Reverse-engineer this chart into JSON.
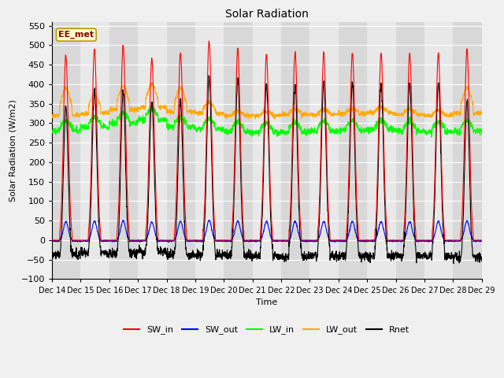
{
  "title": "Solar Radiation",
  "ylabel": "Solar Radiation (W/m2)",
  "xlabel": "Time",
  "ylim": [
    -100,
    560
  ],
  "yticks": [
    -100,
    -50,
    0,
    50,
    100,
    150,
    200,
    250,
    300,
    350,
    400,
    450,
    500,
    550
  ],
  "n_days": 15,
  "start_day": 14,
  "annotation_text": "EE_met",
  "annotation_bg": "#ffffcc",
  "annotation_border": "#bb9900",
  "colors": {
    "SW_in": "#ff0000",
    "SW_out": "#0000ff",
    "LW_in": "#00ff00",
    "LW_out": "#ffaa00",
    "Rnet": "#000000"
  },
  "legend_labels": [
    "SW_in",
    "SW_out",
    "LW_in",
    "LW_out",
    "Rnet"
  ],
  "sw_peaks": [
    475,
    490,
    500,
    465,
    480,
    510,
    490,
    475,
    480,
    480,
    480,
    480,
    480,
    480,
    490
  ],
  "lw_in_base": [
    280,
    290,
    300,
    310,
    290,
    285,
    278,
    276,
    278,
    280,
    282,
    284,
    280,
    278,
    280
  ],
  "lw_out_base_day": [
    390,
    375,
    395,
    400,
    390,
    355,
    330,
    330,
    335,
    335,
    338,
    340,
    335,
    333,
    390
  ],
  "lw_out_base_night": [
    320,
    325,
    335,
    340,
    330,
    325,
    320,
    320,
    322,
    322,
    325,
    327,
    322,
    320,
    325
  ],
  "rnet_night": [
    -45,
    -40,
    -42,
    -48,
    -44,
    -43,
    -42,
    -42,
    -43,
    -43,
    -43,
    -44,
    -42,
    -42,
    -43
  ],
  "figsize": [
    6.4,
    4.8
  ],
  "dpi": 100
}
